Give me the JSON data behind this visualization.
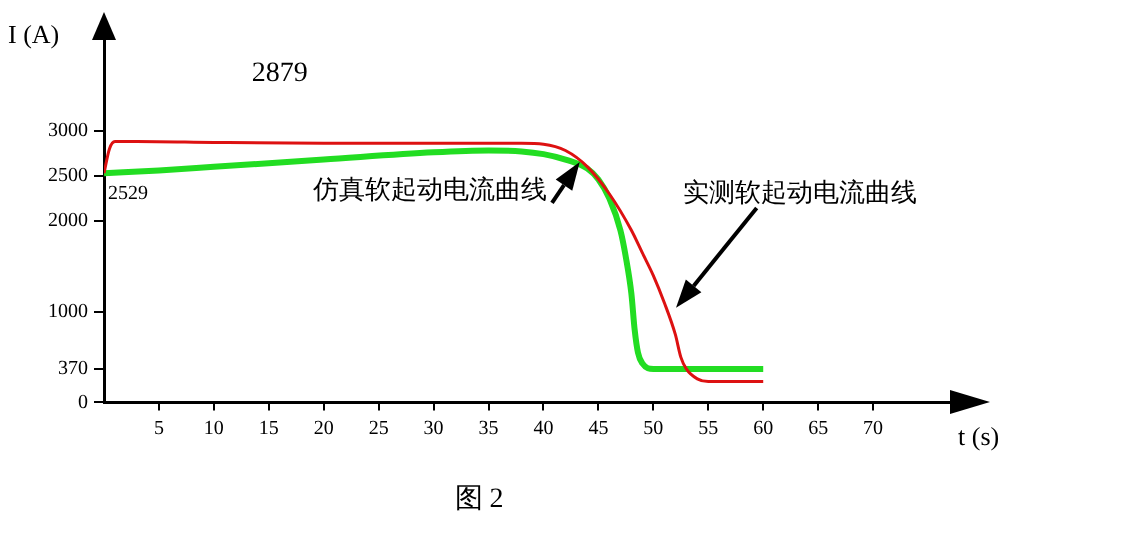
{
  "chart_data": {
    "type": "line",
    "title": "图 2",
    "xlabel": "t (s)",
    "ylabel": "I (A)",
    "xlim": [
      0,
      77
    ],
    "xticks": [
      5,
      10,
      15,
      20,
      25,
      30,
      35,
      40,
      45,
      50,
      55,
      60,
      65,
      70
    ],
    "ylim": [
      0,
      4000
    ],
    "yticks": [
      0,
      370,
      1000,
      2000,
      2500,
      3000
    ],
    "grid": false,
    "legend": false,
    "marker": "none",
    "line_style": "solid",
    "series": [
      {
        "name": "实测软起动电流曲线",
        "color": "#dd1111",
        "x": [
          0,
          0.5,
          1,
          3,
          10,
          20,
          30,
          38,
          40,
          42,
          44,
          46,
          48,
          49,
          50,
          51,
          52,
          52.5,
          53,
          54,
          55,
          60
        ],
        "values": [
          2529,
          2800,
          2879,
          2880,
          2870,
          2860,
          2860,
          2860,
          2850,
          2780,
          2600,
          2300,
          1900,
          1650,
          1400,
          1100,
          750,
          500,
          370,
          260,
          230,
          230
        ]
      },
      {
        "name": "仿真软起动电流曲线",
        "color": "#22dd22",
        "x": [
          0,
          5,
          10,
          20,
          30,
          35,
          38,
          40,
          42,
          44,
          45,
          46,
          47,
          47.5,
          48,
          48.3,
          48.6,
          49,
          50,
          52,
          55,
          60
        ],
        "values": [
          2529,
          2560,
          2600,
          2680,
          2760,
          2780,
          2770,
          2740,
          2680,
          2580,
          2460,
          2250,
          1900,
          1600,
          1200,
          800,
          550,
          430,
          370,
          370,
          370,
          370
        ]
      }
    ],
    "annotations": [
      {
        "text": "2879",
        "x": 16,
        "y": 2879
      },
      {
        "text": "2529",
        "x": 0,
        "y": 2529
      }
    ]
  }
}
